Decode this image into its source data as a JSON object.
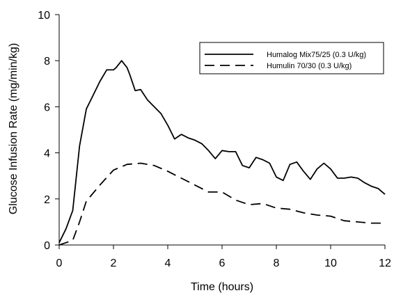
{
  "chart_data": {
    "type": "line",
    "title": "",
    "xlabel": "Time (hours)",
    "ylabel": "Glucose Infusion Rate (mg/min/kg)",
    "xlim": [
      0,
      12
    ],
    "ylim": [
      0,
      10
    ],
    "xticks": [
      0,
      2,
      4,
      6,
      8,
      10,
      12
    ],
    "yticks": [
      0,
      2,
      4,
      6,
      8,
      10
    ],
    "grid": false,
    "legend_position": "top-right",
    "series": [
      {
        "name": "Humalog Mix75/25 (0.3 U/kg)",
        "style": "solid",
        "color": "#000000",
        "x": [
          0,
          0.25,
          0.5,
          0.75,
          1.0,
          1.25,
          1.5,
          1.75,
          2.0,
          2.1,
          2.3,
          2.5,
          2.6,
          2.8,
          3.0,
          3.25,
          3.5,
          3.75,
          4.0,
          4.25,
          4.5,
          4.75,
          5.0,
          5.25,
          5.5,
          5.75,
          6.0,
          6.25,
          6.5,
          6.75,
          7.0,
          7.25,
          7.5,
          7.75,
          8.0,
          8.25,
          8.5,
          8.75,
          9.0,
          9.25,
          9.5,
          9.75,
          10.0,
          10.25,
          10.5,
          10.75,
          11.0,
          11.25,
          11.5,
          11.75,
          12.0
        ],
        "values": [
          0.1,
          0.7,
          1.5,
          4.3,
          5.9,
          6.5,
          7.1,
          7.6,
          7.6,
          7.7,
          8.0,
          7.7,
          7.4,
          6.7,
          6.75,
          6.3,
          6.0,
          5.7,
          5.2,
          4.6,
          4.8,
          4.65,
          4.55,
          4.4,
          4.1,
          3.75,
          4.1,
          4.05,
          4.05,
          3.45,
          3.35,
          3.8,
          3.7,
          3.55,
          2.95,
          2.8,
          3.5,
          3.6,
          3.2,
          2.85,
          3.3,
          3.55,
          3.3,
          2.9,
          2.9,
          2.95,
          2.9,
          2.7,
          2.55,
          2.45,
          2.2
        ]
      },
      {
        "name": "Humulin 70/30 (0.3 U/kg)",
        "style": "dashed",
        "color": "#000000",
        "x": [
          0,
          0.25,
          0.5,
          0.75,
          1.0,
          1.5,
          2.0,
          2.5,
          3.0,
          3.5,
          4.0,
          4.5,
          5.0,
          5.5,
          6.0,
          6.5,
          7.0,
          7.5,
          8.0,
          8.5,
          9.0,
          9.5,
          10.0,
          10.5,
          11.0,
          11.5,
          12.0
        ],
        "values": [
          0.0,
          0.1,
          0.2,
          1.0,
          1.9,
          2.6,
          3.25,
          3.5,
          3.55,
          3.45,
          3.2,
          2.9,
          2.6,
          2.3,
          2.3,
          1.95,
          1.75,
          1.8,
          1.6,
          1.55,
          1.4,
          1.3,
          1.25,
          1.05,
          1.0,
          0.95,
          0.95
        ]
      }
    ]
  }
}
